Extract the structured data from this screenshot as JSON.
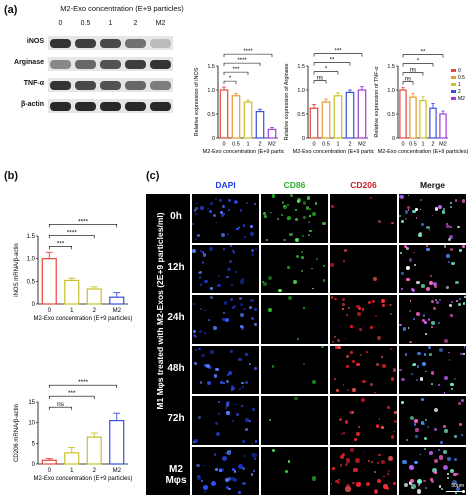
{
  "panel_letters": {
    "a": "(a)",
    "b": "(b)",
    "c": "(c)"
  },
  "western_blot": {
    "title": "M2-Exo concentration (E+9 particles)",
    "lanes": [
      "0",
      "0.5",
      "1",
      "2",
      "M2"
    ],
    "rows": [
      "iNOS",
      "Arginase",
      "TNF-α",
      "β-actin"
    ],
    "intensity": [
      [
        0.85,
        0.8,
        0.75,
        0.55,
        0.2
      ],
      [
        0.45,
        0.6,
        0.7,
        0.8,
        0.85
      ],
      [
        0.85,
        0.75,
        0.7,
        0.6,
        0.5
      ],
      [
        0.9,
        0.9,
        0.9,
        0.9,
        0.9
      ]
    ]
  },
  "chart_data": [
    {
      "type": "bar",
      "categories": [
        "0",
        "0.5",
        "1",
        "2",
        "M2"
      ],
      "values": [
        1.0,
        0.88,
        0.75,
        0.55,
        0.18
      ],
      "errors": [
        0.06,
        0.05,
        0.04,
        0.05,
        0.04
      ],
      "colors": [
        "#e8453c",
        "#e89a2c",
        "#c9c12a",
        "#3a4fd8",
        "#a03ad8"
      ],
      "ylabel": "Relative expression of iNOS",
      "xlabel": "M2-Exo concentration (E+9 particles)",
      "ylim": [
        0,
        1.5
      ],
      "yticks": [
        0,
        0.5,
        1.0,
        1.5
      ],
      "sig": [
        {
          "to": 1,
          "label": "*"
        },
        {
          "to": 2,
          "label": "***"
        },
        {
          "to": 3,
          "label": "****"
        },
        {
          "to": 4,
          "label": "****"
        }
      ]
    },
    {
      "type": "bar",
      "categories": [
        "0",
        "0.5",
        "1",
        "2",
        "M2"
      ],
      "values": [
        0.62,
        0.75,
        0.88,
        0.95,
        1.0
      ],
      "errors": [
        0.08,
        0.06,
        0.06,
        0.05,
        0.07
      ],
      "colors": [
        "#e8453c",
        "#e89a2c",
        "#c9c12a",
        "#3a4fd8",
        "#a03ad8"
      ],
      "ylabel": "Relative expression of Arginase",
      "xlabel": "M2-Exo concentration (E+9 particles)",
      "ylim": [
        0,
        1.5
      ],
      "yticks": [
        0,
        0.5,
        1.0,
        1.5
      ],
      "sig": [
        {
          "to": 1,
          "label": "ns"
        },
        {
          "to": 2,
          "label": "*"
        },
        {
          "to": 3,
          "label": "**"
        },
        {
          "to": 4,
          "label": "***"
        }
      ]
    },
    {
      "type": "bar",
      "categories": [
        "0",
        "0.5",
        "1",
        "2",
        "M2"
      ],
      "values": [
        1.0,
        0.85,
        0.78,
        0.62,
        0.5
      ],
      "errors": [
        0.05,
        0.08,
        0.08,
        0.1,
        0.06
      ],
      "colors": [
        "#e8453c",
        "#e89a2c",
        "#c9c12a",
        "#3a4fd8",
        "#a03ad8"
      ],
      "ylabel": "Relative expression of TNF-α",
      "xlabel": "M2-Exo concentration (E+9 particles)",
      "ylim": [
        0,
        1.5
      ],
      "yticks": [
        0,
        0.5,
        1.0,
        1.5
      ],
      "sig": [
        {
          "to": 1,
          "label": "ns"
        },
        {
          "to": 2,
          "label": "ns"
        },
        {
          "to": 3,
          "label": "*"
        },
        {
          "to": 4,
          "label": "**"
        }
      ],
      "legend": [
        "0",
        "0.5",
        "1",
        "2",
        "M2"
      ]
    },
    {
      "type": "bar",
      "categories": [
        "0",
        "1",
        "2",
        "M2"
      ],
      "values": [
        1.0,
        0.52,
        0.33,
        0.15
      ],
      "errors": [
        0.14,
        0.05,
        0.05,
        0.1
      ],
      "colors": [
        "#e8453c",
        "#c9c12a",
        "#c9c12a",
        "#3a4fd8"
      ],
      "ylabel": "iNOS mRNA/β-actin",
      "xlabel": "M2-Exo concentration (E+9 particles)",
      "ylim": [
        0,
        1.5
      ],
      "yticks": [
        0,
        0.5,
        1.0,
        1.5
      ],
      "sig": [
        {
          "to": 1,
          "label": "***"
        },
        {
          "to": 2,
          "label": "****"
        },
        {
          "to": 3,
          "label": "****"
        }
      ]
    },
    {
      "type": "bar",
      "categories": [
        "0",
        "1",
        "2",
        "M2"
      ],
      "values": [
        0.9,
        2.7,
        6.5,
        10.5
      ],
      "errors": [
        0.4,
        1.3,
        1.0,
        1.8
      ],
      "colors": [
        "#e8453c",
        "#c9c12a",
        "#c9c12a",
        "#3a4fd8"
      ],
      "ylabel": "CD206 mRNA/β-actin",
      "xlabel": "M2-Exo concentration (E+9 particles)",
      "ylim": [
        0,
        15
      ],
      "yticks": [
        0,
        5,
        10,
        15
      ],
      "sig": [
        {
          "to": 1,
          "label": "ns"
        },
        {
          "to": 2,
          "label": "***"
        },
        {
          "to": 3,
          "label": "****"
        }
      ]
    }
  ],
  "microscopy": {
    "headers": [
      "DAPI",
      "CD86",
      "CD206",
      "Merge"
    ],
    "header_colors": [
      "#2340e0",
      "#2bb02b",
      "#d0202a",
      "#111111"
    ],
    "rows": [
      "0h",
      "12h",
      "24h",
      "48h",
      "72h",
      "M2 Mφs"
    ],
    "side_label": "M1 Mφs treated with M2-Exos (2E+9 particles/ml)",
    "scale_bar": "50μm",
    "channel_density": [
      [
        0.9,
        0.9,
        0.1,
        0.9
      ],
      [
        0.8,
        0.4,
        0.1,
        0.8
      ],
      [
        0.8,
        0.1,
        0.7,
        0.8
      ],
      [
        0.8,
        0.1,
        0.6,
        0.8
      ],
      [
        0.6,
        0.05,
        0.5,
        0.6
      ],
      [
        0.9,
        0.1,
        1.0,
        1.0
      ]
    ]
  }
}
